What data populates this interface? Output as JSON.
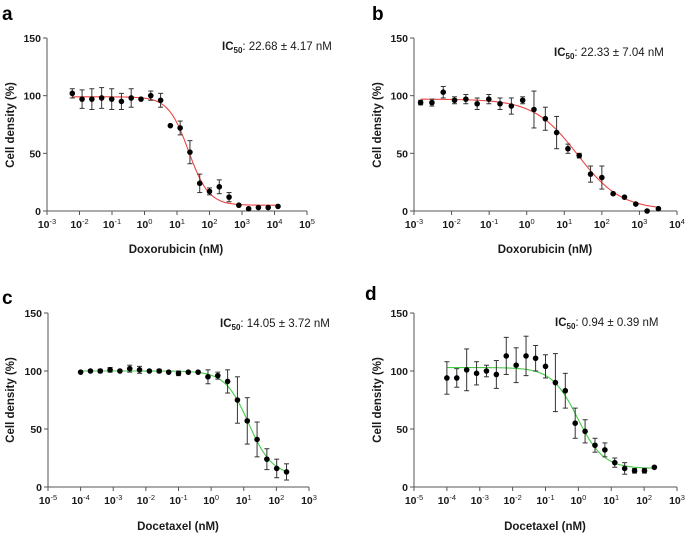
{
  "chart_data": [
    {
      "type": "scatter",
      "panel": "a",
      "title": "",
      "annotation": {
        "prefix": "IC",
        "subscript": "50",
        "text": ": 22.68 ± 4.17 nM"
      },
      "xlabel": "Doxorubicin (nM)",
      "ylabel": "Cell density (%)",
      "xscale": "log",
      "xlim_exp": [
        -3,
        5
      ],
      "ylim": [
        0,
        150
      ],
      "yticks": [
        0,
        50,
        100,
        150
      ],
      "xtick_labels": [
        "10-3",
        "10-2",
        "10-1",
        "100",
        "101",
        "102",
        "103",
        "104",
        "105"
      ],
      "fit_color": "#ee4444",
      "fit": {
        "top": 99,
        "bottom": 5,
        "ic50": 22.68,
        "hill": 1.4
      },
      "points": [
        {
          "x": 0.006,
          "y": 102,
          "err": 4
        },
        {
          "x": 0.012,
          "y": 97,
          "err": 8
        },
        {
          "x": 0.024,
          "y": 97,
          "err": 9
        },
        {
          "x": 0.048,
          "y": 98,
          "err": 9
        },
        {
          "x": 0.098,
          "y": 97,
          "err": 9
        },
        {
          "x": 0.195,
          "y": 95,
          "err": 7
        },
        {
          "x": 0.39,
          "y": 98,
          "err": 8
        },
        {
          "x": 0.78,
          "y": 97,
          "err": 0
        },
        {
          "x": 1.56,
          "y": 100,
          "err": 4
        },
        {
          "x": 3.13,
          "y": 96,
          "err": 6
        },
        {
          "x": 6.25,
          "y": 74,
          "err": 0
        },
        {
          "x": 12.5,
          "y": 72,
          "err": 6
        },
        {
          "x": 25,
          "y": 51,
          "err": 10
        },
        {
          "x": 50,
          "y": 24,
          "err": 8
        },
        {
          "x": 100,
          "y": 17,
          "err": 3
        },
        {
          "x": 200,
          "y": 21,
          "err": 6
        },
        {
          "x": 400,
          "y": 12,
          "err": 4
        },
        {
          "x": 800,
          "y": 5,
          "err": 0
        },
        {
          "x": 1600,
          "y": 2,
          "err": 0
        },
        {
          "x": 3200,
          "y": 3,
          "err": 0
        },
        {
          "x": 6400,
          "y": 3,
          "err": 0
        },
        {
          "x": 12800,
          "y": 4,
          "err": 0
        }
      ]
    },
    {
      "type": "scatter",
      "panel": "b",
      "title": "",
      "annotation": {
        "prefix": "IC",
        "subscript": "50",
        "text": ": 22.33 ± 7.04 nM"
      },
      "xlabel": "Doxorubicin (nM)",
      "ylabel": "Cell density (%)",
      "xscale": "log",
      "xlim_exp": [
        -3,
        4
      ],
      "ylim": [
        0,
        150
      ],
      "yticks": [
        0,
        50,
        100,
        150
      ],
      "xtick_labels": [
        "10-3",
        "10-2",
        "10-1",
        "100",
        "101",
        "102",
        "103",
        "104"
      ],
      "fit_color": "#ee4444",
      "fit": {
        "top": 97,
        "bottom": 1,
        "ic50": 22.33,
        "hill": 0.75
      },
      "points": [
        {
          "x": 0.0015,
          "y": 94,
          "err": 2
        },
        {
          "x": 0.003,
          "y": 94,
          "err": 3
        },
        {
          "x": 0.006,
          "y": 103,
          "err": 5
        },
        {
          "x": 0.012,
          "y": 96,
          "err": 3
        },
        {
          "x": 0.024,
          "y": 97,
          "err": 4
        },
        {
          "x": 0.048,
          "y": 93,
          "err": 5
        },
        {
          "x": 0.098,
          "y": 97,
          "err": 4
        },
        {
          "x": 0.195,
          "y": 93,
          "err": 5
        },
        {
          "x": 0.39,
          "y": 91,
          "err": 7
        },
        {
          "x": 0.78,
          "y": 96,
          "err": 3
        },
        {
          "x": 1.56,
          "y": 88,
          "err": 16
        },
        {
          "x": 3.13,
          "y": 80,
          "err": 10
        },
        {
          "x": 6.25,
          "y": 68,
          "err": 14
        },
        {
          "x": 12.5,
          "y": 54,
          "err": 4
        },
        {
          "x": 25,
          "y": 48,
          "err": 2
        },
        {
          "x": 50,
          "y": 32,
          "err": 7
        },
        {
          "x": 100,
          "y": 29,
          "err": 10
        },
        {
          "x": 200,
          "y": 15,
          "err": 0
        },
        {
          "x": 400,
          "y": 12,
          "err": 0
        },
        {
          "x": 800,
          "y": 6,
          "err": 0
        },
        {
          "x": 1600,
          "y": 0,
          "err": 0
        },
        {
          "x": 3200,
          "y": 2,
          "err": 0
        }
      ]
    },
    {
      "type": "scatter",
      "panel": "c",
      "title": "",
      "annotation": {
        "prefix": "IC",
        "subscript": "50",
        "text": ": 14.05 ± 3.72 nM"
      },
      "xlabel": "Docetaxel (nM)",
      "ylabel": "Cell density (%)",
      "xscale": "log",
      "xlim_exp": [
        -5,
        3
      ],
      "ylim": [
        0,
        150
      ],
      "yticks": [
        0,
        50,
        100,
        150
      ],
      "xtick_labels": [
        "10-5",
        "10-4",
        "10-3",
        "10-2",
        "10-1",
        "100",
        "101",
        "102",
        "103"
      ],
      "fit_color": "#44cc44",
      "fit": {
        "top": 100,
        "bottom": 10,
        "ic50": 14.05,
        "hill": 1.2
      },
      "points": [
        {
          "x": 0.0001,
          "y": 99,
          "err": 0
        },
        {
          "x": 0.0002,
          "y": 100,
          "err": 0
        },
        {
          "x": 0.0004,
          "y": 100,
          "err": 1.5
        },
        {
          "x": 0.0008,
          "y": 101,
          "err": 2
        },
        {
          "x": 0.0016,
          "y": 100,
          "err": 0
        },
        {
          "x": 0.0032,
          "y": 102,
          "err": 3
        },
        {
          "x": 0.0064,
          "y": 101,
          "err": 3
        },
        {
          "x": 0.0128,
          "y": 100,
          "err": 0
        },
        {
          "x": 0.0256,
          "y": 100,
          "err": 1.5
        },
        {
          "x": 0.05,
          "y": 99,
          "err": 0
        },
        {
          "x": 0.1,
          "y": 98,
          "err": 2
        },
        {
          "x": 0.2,
          "y": 99,
          "err": 0
        },
        {
          "x": 0.4,
          "y": 99,
          "err": 0
        },
        {
          "x": 0.8,
          "y": 95,
          "err": 6
        },
        {
          "x": 1.6,
          "y": 96,
          "err": 3
        },
        {
          "x": 3.2,
          "y": 91,
          "err": 10
        },
        {
          "x": 6.4,
          "y": 75,
          "err": 20
        },
        {
          "x": 12.8,
          "y": 57,
          "err": 20
        },
        {
          "x": 25.6,
          "y": 41,
          "err": 15
        },
        {
          "x": 51.2,
          "y": 24,
          "err": 9
        },
        {
          "x": 102.4,
          "y": 16,
          "err": 8
        },
        {
          "x": 204.8,
          "y": 13,
          "err": 7
        }
      ]
    },
    {
      "type": "scatter",
      "panel": "d",
      "title": "",
      "annotation": {
        "prefix": "IC",
        "subscript": "50",
        "text": ": 0.94 ± 0.39 nM"
      },
      "xlabel": "Docetaxel (nM)",
      "ylabel": "Cell density (%)",
      "xscale": "log",
      "xlim_exp": [
        -5,
        3
      ],
      "ylim": [
        0,
        150
      ],
      "yticks": [
        0,
        50,
        100,
        150
      ],
      "xtick_labels": [
        "10-5",
        "10-4",
        "10-3",
        "10-2",
        "10-1",
        "100",
        "101",
        "102",
        "103"
      ],
      "fit_color": "#44cc44",
      "fit": {
        "top": 103,
        "bottom": 16,
        "ic50": 0.94,
        "hill": 1.1
      },
      "points": [
        {
          "x": 0.0001,
          "y": 94,
          "err": 14
        },
        {
          "x": 0.0002,
          "y": 94,
          "err": 8
        },
        {
          "x": 0.0004,
          "y": 101,
          "err": 18
        },
        {
          "x": 0.0008,
          "y": 98,
          "err": 10
        },
        {
          "x": 0.0016,
          "y": 100,
          "err": 5
        },
        {
          "x": 0.0032,
          "y": 97,
          "err": 12
        },
        {
          "x": 0.0064,
          "y": 113,
          "err": 16
        },
        {
          "x": 0.0128,
          "y": 105,
          "err": 15
        },
        {
          "x": 0.0256,
          "y": 113,
          "err": 17
        },
        {
          "x": 0.05,
          "y": 111,
          "err": 11
        },
        {
          "x": 0.1,
          "y": 104,
          "err": 10
        },
        {
          "x": 0.2,
          "y": 90,
          "err": 25
        },
        {
          "x": 0.4,
          "y": 83,
          "err": 15
        },
        {
          "x": 0.8,
          "y": 55,
          "err": 13
        },
        {
          "x": 1.6,
          "y": 48,
          "err": 10
        },
        {
          "x": 3.2,
          "y": 36,
          "err": 6
        },
        {
          "x": 6.4,
          "y": 32,
          "err": 6
        },
        {
          "x": 12.8,
          "y": 21,
          "err": 4
        },
        {
          "x": 25.6,
          "y": 16,
          "err": 5
        },
        {
          "x": 51.2,
          "y": 14,
          "err": 2
        },
        {
          "x": 102.4,
          "y": 14,
          "err": 2
        },
        {
          "x": 204.8,
          "y": 17,
          "err": 0
        }
      ]
    }
  ]
}
